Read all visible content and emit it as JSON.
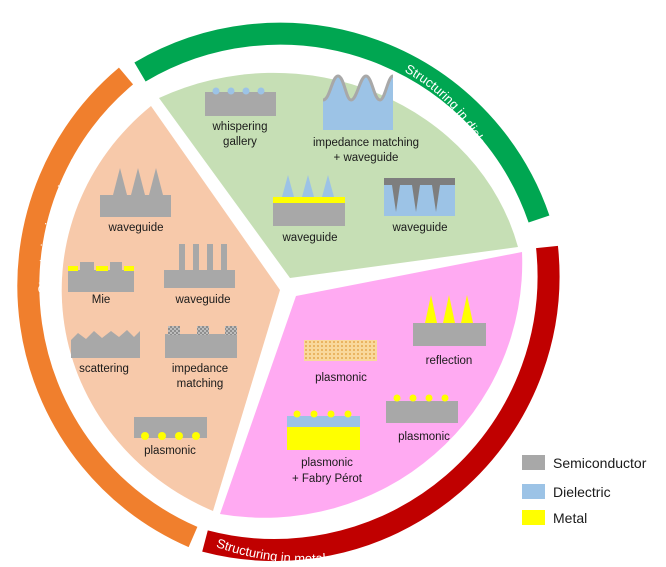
{
  "colors": {
    "semiconductor": "#a8a8a8",
    "dielectric": "#9cc3e6",
    "metal": "#ffff00",
    "sector_dielectric": "#c6dfb5",
    "sector_semiconductor": "#f7c9aa",
    "sector_metal": "#ffaaf2",
    "ring_dielectric": "#00a651",
    "ring_semiconductor": "#f07f2d",
    "ring_metal": "#c00000",
    "plasmonic_dots": "#f5c780"
  },
  "ring_labels": {
    "dielectric": "Structuring in dielectric",
    "semiconductor": "Structuring in semiconductor",
    "metal": "Structuring in metal"
  },
  "dielectric_sector": {
    "whispering": "whispering",
    "gallery": "gallery",
    "impedance_matching": "impedance matching",
    "plus_waveguide": "+ waveguide",
    "waveguide_left": "waveguide",
    "waveguide_right": "waveguide"
  },
  "semiconductor_sector": {
    "waveguide_top": "waveguide",
    "mie": "Mie",
    "waveguide_pillars": "waveguide",
    "scattering": "scattering",
    "impedance": "impedance",
    "matching": "matching",
    "plasmonic": "plasmonic"
  },
  "metal_sector": {
    "plasmonic_left": "plasmonic",
    "reflection": "reflection",
    "plasmonic_right": "plasmonic",
    "plasmonic_fp": "plasmonic",
    "plus_fabry_perot": "+ Fabry Pérot"
  },
  "legend": [
    {
      "label": "Semiconductor",
      "color": "#a8a8a8"
    },
    {
      "label": "Dielectric",
      "color": "#9cc3e6"
    },
    {
      "label": "Metal",
      "color": "#ffff00"
    }
  ]
}
